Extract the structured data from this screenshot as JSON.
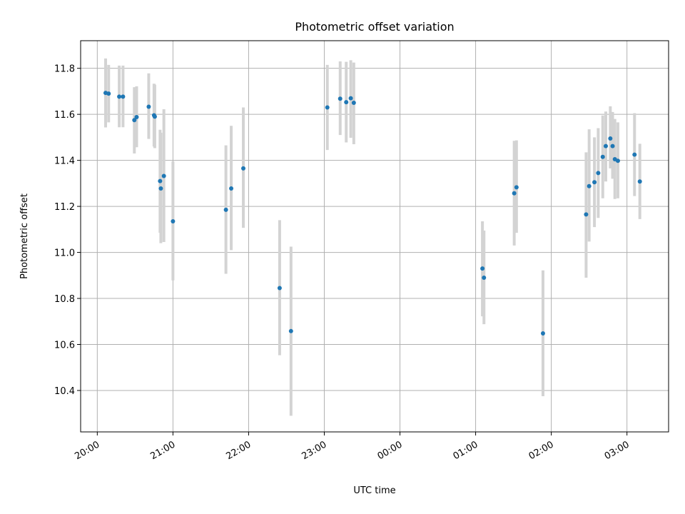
{
  "chart_data": {
    "type": "scatter",
    "title": "Photometric offset variation",
    "xlabel": "UTC time",
    "ylabel": "Photometric offset",
    "x_unit": "hours",
    "xlim": [
      19.78,
      27.55
    ],
    "ylim": [
      10.22,
      11.92
    ],
    "grid": true,
    "x_ticks": [
      {
        "value": 20,
        "label": "20:00"
      },
      {
        "value": 21,
        "label": "21:00"
      },
      {
        "value": 22,
        "label": "22:00"
      },
      {
        "value": 23,
        "label": "23:00"
      },
      {
        "value": 24,
        "label": "00:00"
      },
      {
        "value": 25,
        "label": "01:00"
      },
      {
        "value": 26,
        "label": "02:00"
      },
      {
        "value": 27,
        "label": "03:00"
      }
    ],
    "y_ticks": [
      {
        "value": 10.4,
        "label": "10.4"
      },
      {
        "value": 10.6,
        "label": "10.6"
      },
      {
        "value": 10.8,
        "label": "10.8"
      },
      {
        "value": 11.0,
        "label": "11.0"
      },
      {
        "value": 11.2,
        "label": "11.2"
      },
      {
        "value": 11.4,
        "label": "11.4"
      },
      {
        "value": 11.6,
        "label": "11.6"
      },
      {
        "value": 11.8,
        "label": "11.8"
      }
    ],
    "marker_color": "#1f77b4",
    "errorbar_color": "#d3d3d3",
    "points": [
      {
        "x": 20.11,
        "y": 11.693,
        "lo": 11.543,
        "hi": 11.843
      },
      {
        "x": 20.15,
        "y": 11.69,
        "lo": 11.565,
        "hi": 11.815
      },
      {
        "x": 20.29,
        "y": 11.677,
        "lo": 11.544,
        "hi": 11.812
      },
      {
        "x": 20.34,
        "y": 11.677,
        "lo": 11.544,
        "hi": 11.812
      },
      {
        "x": 20.49,
        "y": 11.575,
        "lo": 11.43,
        "hi": 11.718
      },
      {
        "x": 20.52,
        "y": 11.588,
        "lo": 11.457,
        "hi": 11.722
      },
      {
        "x": 20.68,
        "y": 11.633,
        "lo": 11.493,
        "hi": 11.778
      },
      {
        "x": 20.75,
        "y": 11.596,
        "lo": 11.46,
        "hi": 11.733
      },
      {
        "x": 20.76,
        "y": 11.59,
        "lo": 11.453,
        "hi": 11.729
      },
      {
        "x": 20.83,
        "y": 11.31,
        "lo": 11.085,
        "hi": 11.533
      },
      {
        "x": 20.84,
        "y": 11.278,
        "lo": 11.04,
        "hi": 11.52
      },
      {
        "x": 20.88,
        "y": 11.332,
        "lo": 11.045,
        "hi": 11.622
      },
      {
        "x": 21.0,
        "y": 11.135,
        "lo": 10.878,
        "hi": 11.395
      },
      {
        "x": 21.7,
        "y": 11.185,
        "lo": 10.907,
        "hi": 11.465
      },
      {
        "x": 21.77,
        "y": 11.278,
        "lo": 11.01,
        "hi": 11.55
      },
      {
        "x": 21.93,
        "y": 11.365,
        "lo": 11.107,
        "hi": 11.63
      },
      {
        "x": 22.41,
        "y": 10.845,
        "lo": 10.553,
        "hi": 11.14
      },
      {
        "x": 22.56,
        "y": 10.658,
        "lo": 10.29,
        "hi": 11.025
      },
      {
        "x": 23.04,
        "y": 11.63,
        "lo": 11.445,
        "hi": 11.815
      },
      {
        "x": 23.21,
        "y": 11.668,
        "lo": 11.51,
        "hi": 11.83
      },
      {
        "x": 23.29,
        "y": 11.653,
        "lo": 11.478,
        "hi": 11.828
      },
      {
        "x": 23.35,
        "y": 11.67,
        "lo": 11.498,
        "hi": 11.835
      },
      {
        "x": 23.39,
        "y": 11.65,
        "lo": 11.47,
        "hi": 11.825
      },
      {
        "x": 25.09,
        "y": 10.93,
        "lo": 10.722,
        "hi": 11.135
      },
      {
        "x": 25.11,
        "y": 10.89,
        "lo": 10.688,
        "hi": 11.095
      },
      {
        "x": 25.51,
        "y": 11.257,
        "lo": 11.03,
        "hi": 11.485
      },
      {
        "x": 25.54,
        "y": 11.283,
        "lo": 11.085,
        "hi": 11.487
      },
      {
        "x": 25.89,
        "y": 10.648,
        "lo": 10.375,
        "hi": 10.922
      },
      {
        "x": 26.46,
        "y": 11.165,
        "lo": 10.89,
        "hi": 11.435
      },
      {
        "x": 26.5,
        "y": 11.288,
        "lo": 11.047,
        "hi": 11.535
      },
      {
        "x": 26.57,
        "y": 11.305,
        "lo": 11.11,
        "hi": 11.5
      },
      {
        "x": 26.62,
        "y": 11.345,
        "lo": 11.15,
        "hi": 11.54
      },
      {
        "x": 26.68,
        "y": 11.415,
        "lo": 11.235,
        "hi": 11.595
      },
      {
        "x": 26.72,
        "y": 11.462,
        "lo": 11.308,
        "hi": 11.612
      },
      {
        "x": 26.78,
        "y": 11.495,
        "lo": 11.365,
        "hi": 11.635
      },
      {
        "x": 26.81,
        "y": 11.462,
        "lo": 11.32,
        "hi": 11.61
      },
      {
        "x": 26.84,
        "y": 11.405,
        "lo": 11.232,
        "hi": 11.58
      },
      {
        "x": 26.88,
        "y": 11.398,
        "lo": 11.235,
        "hi": 11.565
      },
      {
        "x": 27.1,
        "y": 11.425,
        "lo": 11.245,
        "hi": 11.605
      },
      {
        "x": 27.17,
        "y": 11.308,
        "lo": 11.145,
        "hi": 11.472
      }
    ]
  }
}
